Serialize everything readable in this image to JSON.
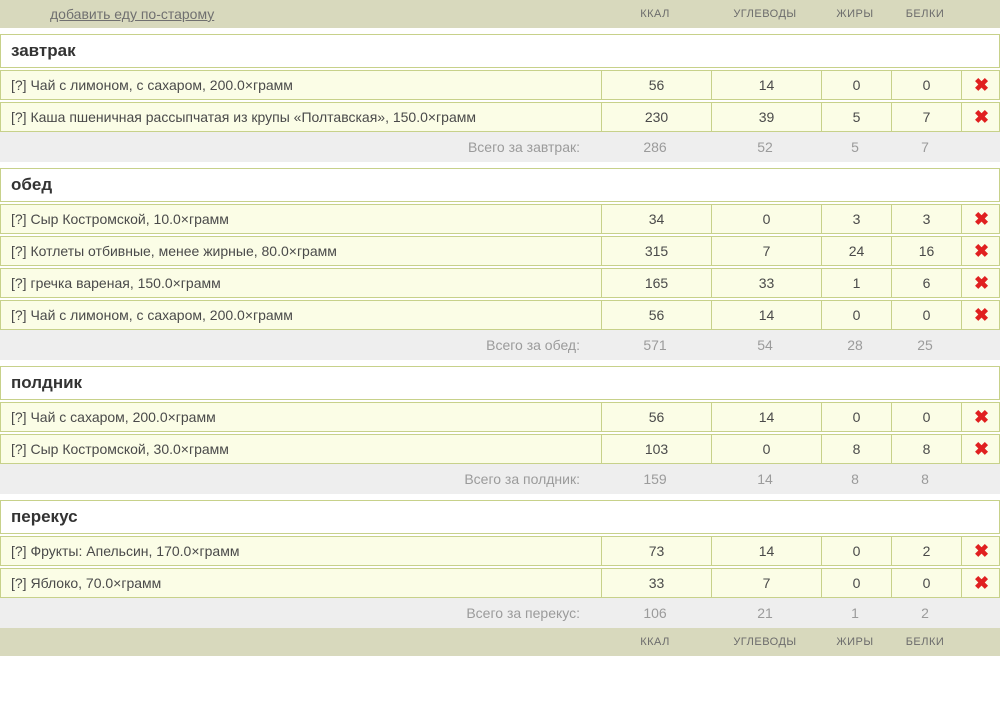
{
  "header": {
    "add_old_link": "добавить еду по-старому",
    "columns": {
      "kcal": "ККАЛ",
      "carb": "УГЛЕВОДЫ",
      "fat": "ЖИРЫ",
      "prot": "БЕЛКИ"
    }
  },
  "sections": [
    {
      "title": "завтрак",
      "total_label": "Всего за завтрак:",
      "rows": [
        {
          "help": "[?]",
          "name": "Чай с лимоном, с сахаром, 200.0×грамм",
          "kcal": "56",
          "carb": "14",
          "fat": "0",
          "prot": "0"
        },
        {
          "help": "[?]",
          "name": "Каша пшеничная рассыпчатая из крупы «Полтавская», 150.0×грамм",
          "kcal": "230",
          "carb": "39",
          "fat": "5",
          "prot": "7"
        }
      ],
      "totals": {
        "kcal": "286",
        "carb": "52",
        "fat": "5",
        "prot": "7"
      }
    },
    {
      "title": "обед",
      "total_label": "Всего за обед:",
      "rows": [
        {
          "help": "[?]",
          "name": "Сыр Костромской, 10.0×грамм",
          "kcal": "34",
          "carb": "0",
          "fat": "3",
          "prot": "3"
        },
        {
          "help": "[?]",
          "name": "Котлеты отбивные, менее жирные, 80.0×грамм",
          "kcal": "315",
          "carb": "7",
          "fat": "24",
          "prot": "16"
        },
        {
          "help": "[?]",
          "name": "гречка вареная, 150.0×грамм",
          "kcal": "165",
          "carb": "33",
          "fat": "1",
          "prot": "6"
        },
        {
          "help": "[?]",
          "name": "Чай с лимоном, с сахаром, 200.0×грамм",
          "kcal": "56",
          "carb": "14",
          "fat": "0",
          "prot": "0"
        }
      ],
      "totals": {
        "kcal": "571",
        "carb": "54",
        "fat": "28",
        "prot": "25"
      }
    },
    {
      "title": "полдник",
      "total_label": "Всего за полдник:",
      "rows": [
        {
          "help": "[?]",
          "name": "Чай с сахаром, 200.0×грамм",
          "kcal": "56",
          "carb": "14",
          "fat": "0",
          "prot": "0"
        },
        {
          "help": "[?]",
          "name": "Сыр Костромской, 30.0×грамм",
          "kcal": "103",
          "carb": "0",
          "fat": "8",
          "prot": "8"
        }
      ],
      "totals": {
        "kcal": "159",
        "carb": "14",
        "fat": "8",
        "prot": "8"
      }
    },
    {
      "title": "перекус",
      "total_label": "Всего за перекус:",
      "rows": [
        {
          "help": "[?]",
          "name": "Фрукты: Апельсин, 170.0×грамм",
          "kcal": "73",
          "carb": "14",
          "fat": "0",
          "prot": "2"
        },
        {
          "help": "[?]",
          "name": "Яблоко, 70.0×грамм",
          "kcal": "33",
          "carb": "7",
          "fat": "0",
          "prot": "0"
        }
      ],
      "totals": {
        "kcal": "106",
        "carb": "21",
        "fat": "1",
        "prot": "2"
      }
    }
  ],
  "colors": {
    "bar_bg": "#d8d9bd",
    "row_bg": "#fbfde6",
    "border": "#c7d18a",
    "total_bg": "#eeeeee",
    "text_main": "#4a4a4a",
    "text_muted": "#9b9b9b",
    "header_text": "#6c6c6c",
    "delete": "#e02020"
  }
}
